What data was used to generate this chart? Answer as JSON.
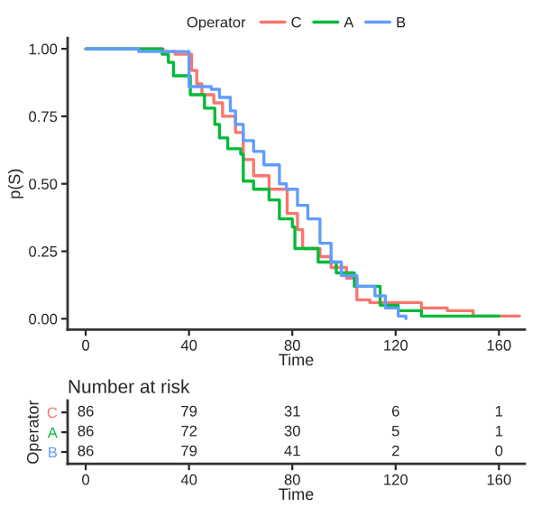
{
  "chart_data": [
    {
      "type": "step",
      "xlabel": "Time",
      "ylabel": "p(S)",
      "legend_title": "Operator",
      "legend": "top",
      "grid": false,
      "xlim": [
        -7,
        170
      ],
      "xticks": [
        0,
        40,
        80,
        120,
        160
      ],
      "ylim": [
        -0.04,
        1.04
      ],
      "yticks": [
        {
          "value": 0,
          "label": "0.00"
        },
        {
          "value": 0.25,
          "label": "0.25"
        },
        {
          "value": 0.5,
          "label": "0.50"
        },
        {
          "value": 0.75,
          "label": "0.75"
        },
        {
          "value": 1,
          "label": "1.00"
        }
      ],
      "series": [
        {
          "name": "C",
          "color": "#f8766d",
          "x": [
            0,
            30,
            34.6,
            41,
            43,
            45,
            49.6,
            53,
            58,
            61,
            65,
            71,
            78,
            82,
            84,
            90.7,
            95,
            101,
            105,
            110,
            121,
            130,
            140,
            150,
            168
          ],
          "values": [
            1,
            0.99,
            0.98,
            0.92,
            0.87,
            0.83,
            0.8,
            0.75,
            0.69,
            0.59,
            0.53,
            0.48,
            0.39,
            0.33,
            0.26,
            0.23,
            0.19,
            0.15,
            0.07,
            0.06,
            0.06,
            0.04,
            0.03,
            0.01,
            0.01
          ]
        },
        {
          "name": "A",
          "color": "#00ba38",
          "x": [
            0,
            29.6,
            32,
            34,
            40.5,
            46,
            50,
            51.8,
            55,
            60,
            61,
            65,
            71,
            75,
            80,
            81,
            90,
            97,
            104,
            114,
            121,
            130,
            160
          ],
          "values": [
            1,
            0.98,
            0.95,
            0.9,
            0.83,
            0.78,
            0.72,
            0.67,
            0.63,
            0.61,
            0.51,
            0.48,
            0.44,
            0.37,
            0.34,
            0.26,
            0.21,
            0.17,
            0.12,
            0.05,
            0.03,
            0.01,
            0.01
          ]
        },
        {
          "name": "B",
          "color": "#619cff",
          "x": [
            0,
            20.5,
            40,
            48.6,
            51.8,
            56,
            58,
            61,
            65,
            69,
            75,
            77.7,
            82,
            86,
            90.7,
            95,
            99,
            105,
            112,
            116,
            121,
            124
          ],
          "values": [
            1,
            0.99,
            0.86,
            0.85,
            0.82,
            0.77,
            0.72,
            0.66,
            0.62,
            0.57,
            0.5,
            0.48,
            0.42,
            0.37,
            0.28,
            0.21,
            0.16,
            0.12,
            0.085,
            0.04,
            0.01,
            0
          ]
        }
      ]
    },
    {
      "type": "heatmap",
      "title": "Number at risk",
      "xlabel": "Time",
      "ylabel": "Operator",
      "categories": [
        "0",
        "40",
        "80",
        "120",
        "160"
      ],
      "y_categories": [
        "C",
        "A",
        "B"
      ],
      "colors": [
        "#f8766d",
        "#00ba38",
        "#619cff"
      ],
      "data_labels": true,
      "cells": [
        [
          86,
          79,
          31,
          6,
          1
        ],
        [
          86,
          72,
          30,
          5,
          1
        ],
        [
          86,
          79,
          41,
          2,
          0
        ]
      ]
    }
  ]
}
